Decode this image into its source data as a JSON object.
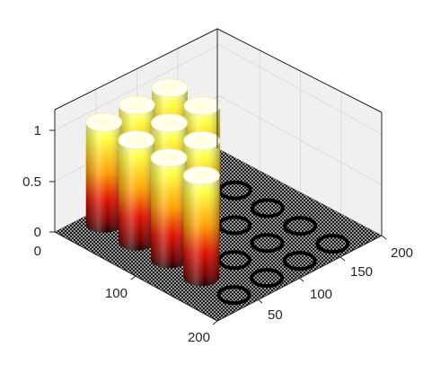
{
  "chart_data": {
    "type": "bar3d",
    "description_free": true,
    "title": "",
    "xlabel": "",
    "ylabel": "",
    "zlabel": "",
    "x_ticks": [
      0,
      100,
      200
    ],
    "y_ticks": [
      50,
      100,
      150,
      200
    ],
    "z_ticks": [
      0,
      0.5,
      1
    ],
    "xlim": [
      0,
      200
    ],
    "ylim": [
      0,
      200
    ],
    "zlim": [
      0,
      1.2
    ],
    "grid": true,
    "colormap": "hot",
    "rings_flat": [
      {
        "x": 20,
        "y": 160
      },
      {
        "x": 60,
        "y": 160
      },
      {
        "x": 100,
        "y": 160
      },
      {
        "x": 140,
        "y": 160
      },
      {
        "x": 180,
        "y": 160
      },
      {
        "x": 100,
        "y": 120
      },
      {
        "x": 140,
        "y": 120
      },
      {
        "x": 180,
        "y": 120
      },
      {
        "x": 140,
        "y": 80
      },
      {
        "x": 180,
        "y": 80
      },
      {
        "x": 180,
        "y": 40
      }
    ],
    "pillars": [
      {
        "x": 20,
        "y": 40,
        "height": 1
      },
      {
        "x": 20,
        "y": 80,
        "height": 1
      },
      {
        "x": 20,
        "y": 120,
        "height": 1
      },
      {
        "x": 60,
        "y": 40,
        "height": 1
      },
      {
        "x": 60,
        "y": 80,
        "height": 1
      },
      {
        "x": 60,
        "y": 120,
        "height": 1
      },
      {
        "x": 100,
        "y": 40,
        "height": 1
      },
      {
        "x": 100,
        "y": 80,
        "height": 1
      },
      {
        "x": 140,
        "y": 40,
        "height": 1
      }
    ]
  },
  "labels": {
    "z_0": "0",
    "z_05": "0.5",
    "z_1": "1",
    "x_0": "0",
    "x_100": "100",
    "x_200": "200",
    "y_50": "50",
    "y_100": "100",
    "y_150": "150",
    "y_200": "200"
  }
}
